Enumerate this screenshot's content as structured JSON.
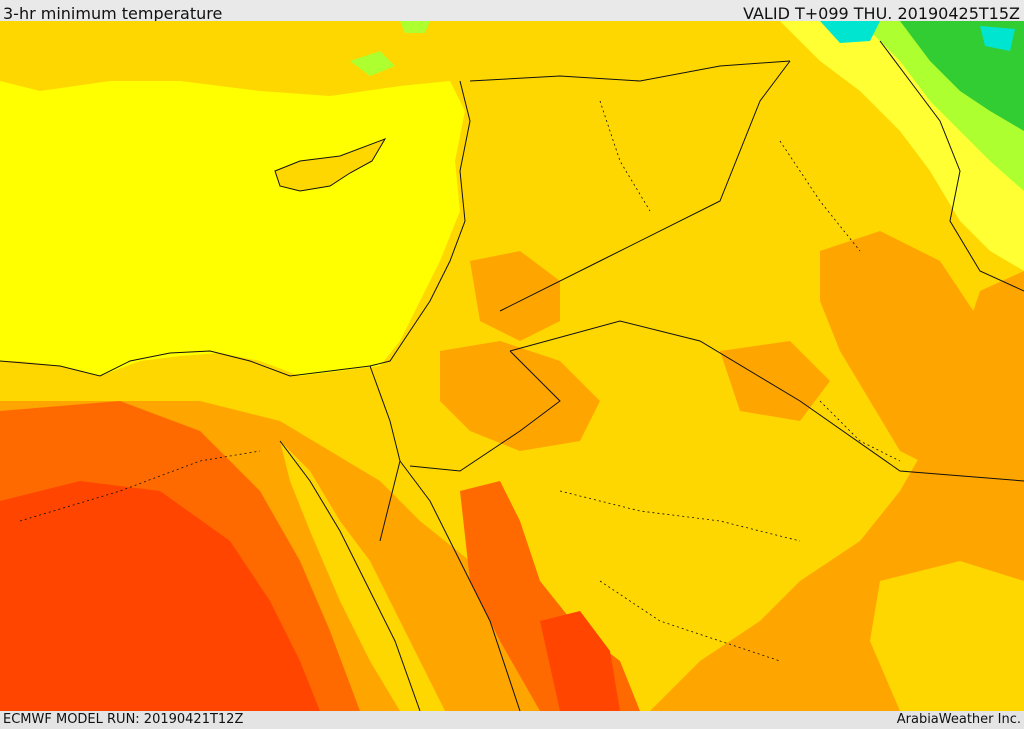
{
  "header": {
    "title": "3-hr minimum temperature",
    "valid": "VALID T+099 THU. 20190425T15Z"
  },
  "footer": {
    "model_run": "ECMWF MODEL RUN: 20190421T12Z",
    "credit": "ArabiaWeather Inc."
  },
  "map": {
    "colors": {
      "sea": "#ffff00",
      "mild": "#ffd700",
      "warm": "#ffa500",
      "hot": "#ff6a00",
      "hotter": "#ff4500",
      "cool": "#ffff33",
      "cold": "#adff2f",
      "colder": "#32cd32",
      "coldest": "#00e5d0",
      "border": "#111111"
    }
  }
}
